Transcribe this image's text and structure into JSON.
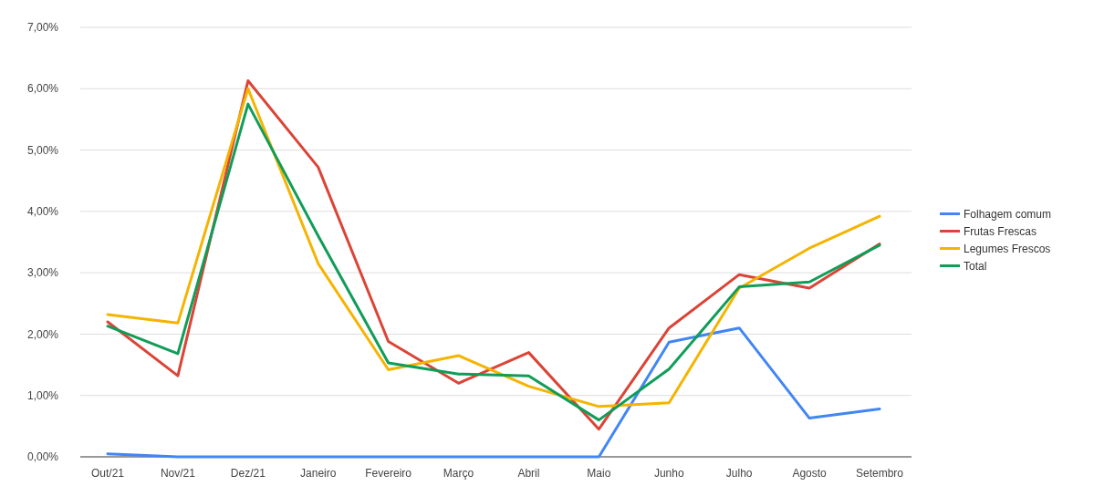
{
  "chart_data": {
    "type": "line",
    "categories": [
      "Out/21",
      "Nov/21",
      "Dez/21",
      "Janeiro",
      "Fevereiro",
      "Março",
      "Abril",
      "Maio",
      "Junho",
      "Julho",
      "Agosto",
      "Setembro"
    ],
    "series": [
      {
        "name": "Folhagem comum",
        "color": "#4285f4",
        "values": [
          0.05,
          0,
          0,
          0,
          0,
          0,
          0,
          0,
          1.87,
          2.1,
          0.63,
          0.78
        ]
      },
      {
        "name": "Frutas Frescas",
        "color": "#db4437",
        "values": [
          2.2,
          1.32,
          6.13,
          4.72,
          1.88,
          1.2,
          1.7,
          0.45,
          2.1,
          2.97,
          2.75,
          3.47
        ]
      },
      {
        "name": "Legumes Frescos",
        "color": "#f4b400",
        "values": [
          2.32,
          2.18,
          6.0,
          3.15,
          1.42,
          1.65,
          1.15,
          0.82,
          0.88,
          2.75,
          3.4,
          3.92
        ]
      },
      {
        "name": "Total",
        "color": "#0f9d58",
        "values": [
          2.13,
          1.68,
          5.75,
          3.6,
          1.53,
          1.35,
          1.32,
          0.6,
          1.43,
          2.77,
          2.85,
          3.45
        ]
      }
    ],
    "ylim": [
      0,
      7
    ],
    "yticks": [
      {
        "value": 0,
        "label": "0,00%"
      },
      {
        "value": 1,
        "label": "1,00%"
      },
      {
        "value": 2,
        "label": "2,00%"
      },
      {
        "value": 3,
        "label": "3,00%"
      },
      {
        "value": 4,
        "label": "4,00%"
      },
      {
        "value": 5,
        "label": "5,00%"
      },
      {
        "value": 6,
        "label": "6,00%"
      },
      {
        "value": 7,
        "label": "7,00%"
      }
    ],
    "grid": "y",
    "legend": "right",
    "marker": "none",
    "line_style": "solid"
  }
}
